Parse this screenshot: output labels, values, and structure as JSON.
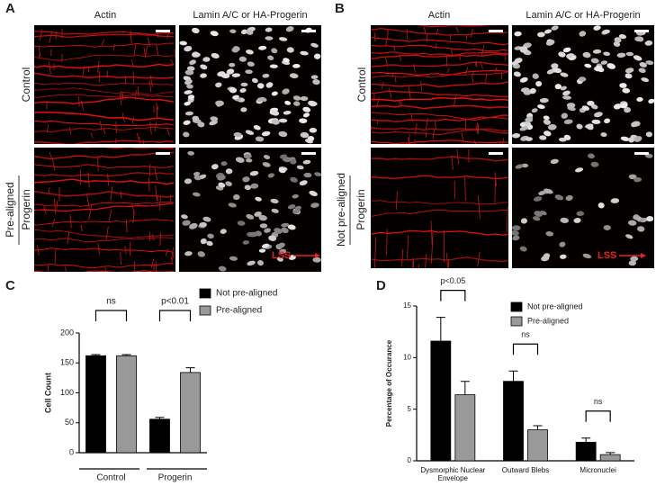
{
  "panel_labels": [
    "A",
    "B",
    "C",
    "D"
  ],
  "panel_a": {
    "column_headers": [
      "Actin",
      "Lamin A/C or HA-Progerin"
    ],
    "row_labels": [
      [
        "Control"
      ],
      [
        "Pre-aligned",
        "Progerin"
      ]
    ],
    "flow_label": "LSS"
  },
  "panel_b": {
    "column_headers": [
      "Actin",
      "Lamin A/C or HA-Progerin"
    ],
    "row_labels": [
      [
        "Control"
      ],
      [
        "Not pre-aligned",
        "Progerin"
      ]
    ],
    "flow_label": "LSS"
  },
  "chart_data": [
    {
      "type": "bar",
      "ylabel": "Cell Count",
      "categories": [
        "Control",
        "Progerin"
      ],
      "series": [
        {
          "name": "Not pre-aligned",
          "color": "#000000",
          "values": [
            162,
            56
          ],
          "errors": [
            2,
            3
          ]
        },
        {
          "name": "Pre-aligned",
          "color": "#999999",
          "values": [
            162,
            134
          ],
          "errors": [
            2,
            8
          ]
        }
      ],
      "ylim": [
        0,
        200
      ],
      "yticks": [
        0,
        50,
        100,
        150,
        200
      ],
      "annotations": [
        "ns",
        "p<0.01"
      ]
    },
    {
      "type": "bar",
      "ylabel": "Percentage of Occurance",
      "categories": [
        "Dysmorphic Nuclear Envelope",
        "Outward Blebs",
        "Micronuclei"
      ],
      "series": [
        {
          "name": "Not pre-aligned",
          "color": "#000000",
          "values": [
            11.6,
            7.7,
            1.8
          ],
          "errors": [
            2.3,
            1.0,
            0.4
          ]
        },
        {
          "name": "Pre-aligned",
          "color": "#999999",
          "values": [
            6.4,
            3.0,
            0.6
          ],
          "errors": [
            1.3,
            0.4,
            0.2
          ]
        }
      ],
      "ylim": [
        0,
        15
      ],
      "yticks": [
        0,
        5,
        10,
        15
      ],
      "annotations": [
        "p<0.05",
        "ns",
        "ns"
      ]
    }
  ]
}
